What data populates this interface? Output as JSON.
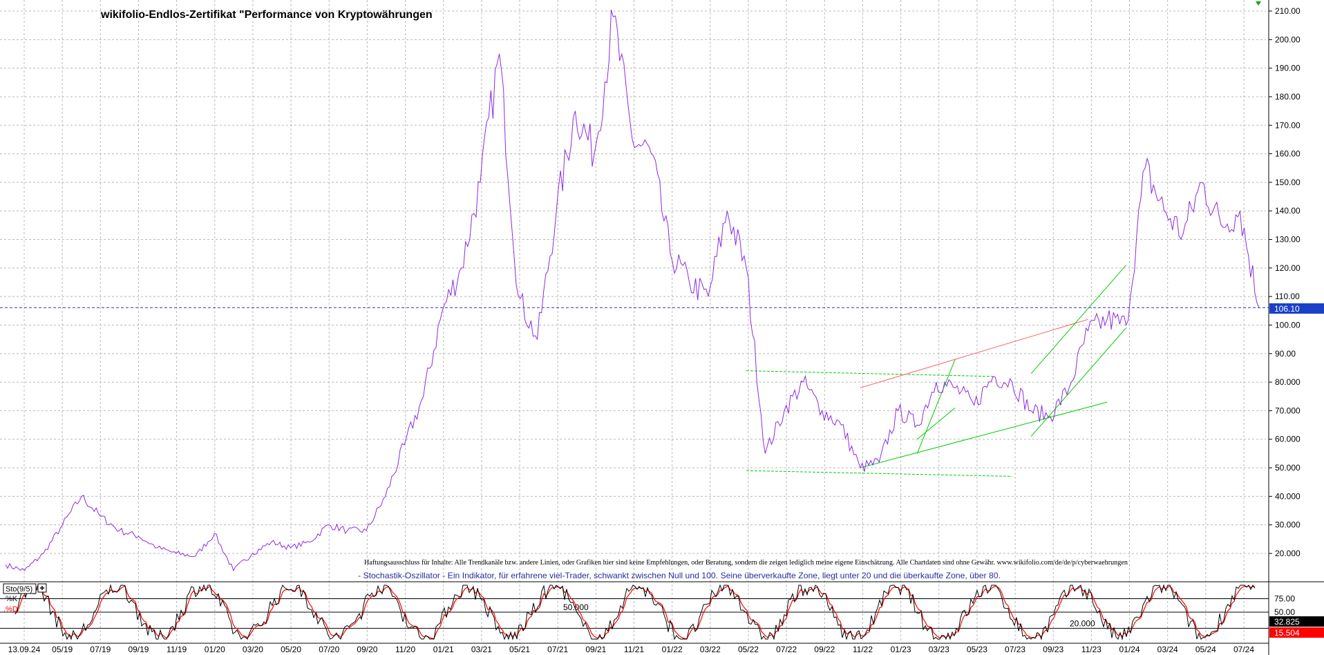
{
  "chart_data": {
    "type": "line",
    "title": "wikifolio-Endlos-Zertifikat \"Performance von Kryptowährungen",
    "ylim": [
      10,
      213
    ],
    "yticks": [
      20,
      30,
      40,
      50,
      60,
      70,
      80,
      90,
      100,
      110,
      120,
      130,
      140,
      150,
      160,
      170,
      180,
      190,
      200,
      210
    ],
    "ytick_labels": [
      "20.000",
      "30.000",
      "40.000",
      "50.000",
      "60.000",
      "70.000",
      "80.000",
      "90.00",
      "100.00",
      "110.00",
      "120.00",
      "130.00",
      "140.00",
      "150.00",
      "160.00",
      "170.00",
      "180.00",
      "190.00",
      "200.00",
      "210.00"
    ],
    "xtick_labels": [
      "13.09.24",
      "05/19",
      "07/19",
      "09/19",
      "11/19",
      "01/20",
      "03/20",
      "05/20",
      "07/20",
      "09/20",
      "11/20",
      "01/21",
      "03/21",
      "05/21",
      "07/21",
      "09/21",
      "11/21",
      "01/22",
      "03/22",
      "05/22",
      "07/22",
      "09/22",
      "11/22",
      "01/23",
      "03/23",
      "05/23",
      "07/23",
      "09/23",
      "11/23",
      "01/24",
      "03/24",
      "05/24",
      "07/24"
    ],
    "grid": true,
    "series": [
      {
        "name": "",
        "color": "#8a2be2",
        "x": [
          "2019-03",
          "2019-04",
          "2019-05",
          "2019-06",
          "2019-07",
          "2019-08",
          "2019-09",
          "2019-10",
          "2019-11",
          "2019-12",
          "2020-01",
          "2020-02",
          "2020-03",
          "2020-04",
          "2020-05",
          "2020-06",
          "2020-07",
          "2020-08",
          "2020-09",
          "2020-10",
          "2020-11",
          "2020-12",
          "2021-01",
          "2021-02",
          "2021-03",
          "2021-04",
          "2021-05",
          "2021-06",
          "2021-07",
          "2021-08",
          "2021-09",
          "2021-10",
          "2021-11",
          "2021-12",
          "2022-01",
          "2022-02",
          "2022-03",
          "2022-04",
          "2022-05",
          "2022-06",
          "2022-07",
          "2022-08",
          "2022-09",
          "2022-10",
          "2022-11",
          "2022-12",
          "2023-01",
          "2023-02",
          "2023-03",
          "2023-04",
          "2023-05",
          "2023-06",
          "2023-07",
          "2023-08",
          "2023-09",
          "2023-10",
          "2023-11",
          "2023-12",
          "2024-01",
          "2024-02",
          "2024-03",
          "2024-04",
          "2024-05",
          "2024-06",
          "2024-07",
          "2024-08",
          "2024-09"
        ],
        "y": [
          16,
          14,
          20,
          30,
          40,
          33,
          28,
          26,
          22,
          20,
          19,
          27,
          14,
          20,
          24,
          22,
          24,
          30,
          28,
          28,
          40,
          58,
          75,
          105,
          120,
          150,
          195,
          110,
          95,
          140,
          175,
          160,
          208,
          165,
          160,
          125,
          115,
          110,
          140,
          120,
          55,
          70,
          80,
          70,
          65,
          50,
          52,
          70,
          65,
          80,
          78,
          72,
          82,
          80,
          70,
          68,
          78,
          98,
          102,
          100,
          155,
          140,
          132,
          150,
          135,
          140,
          106
        ]
      }
    ],
    "current_value": "106.10",
    "annotations": {
      "disclaimer": "Haftungsausschluss für Inhalte: Alle Trendkanäle bzw. andere Linien, oder Grafiken hier sind keine Empfehlungen, oder Beratung, sondern die zeigen lediglich meine eigene Einschätzung. Alle Chartdaten sind ohne Gewähr.  www.wikifolio.com/de/de/p/cyberwaehrungen",
      "indicator_note": "- Stochastik-Oszillator - Ein Indikator, für erfahrene viel-Trader, schwankt zwischen Null und 100. Seine überverkaufte Zone, liegt unter 20 und die überkaufte Zone, über 80."
    },
    "trendlines": [
      {
        "color": "#00cc00",
        "style": "dashed",
        "from": [
          "2022-06",
          84
        ],
        "to": [
          "2023-07",
          82
        ]
      },
      {
        "color": "#00cc00",
        "style": "dashed",
        "from": [
          "2022-06",
          49
        ],
        "to": [
          "2023-08",
          47
        ]
      },
      {
        "color": "#ff6666",
        "style": "solid",
        "from": [
          "2022-12",
          78
        ],
        "to": [
          "2023-12",
          102
        ]
      },
      {
        "color": "#00cc00",
        "style": "solid",
        "from": [
          "2022-12",
          50
        ],
        "to": [
          "2024-01",
          73
        ]
      },
      {
        "color": "#00cc00",
        "style": "solid",
        "from": [
          "2023-03",
          55
        ],
        "to": [
          "2023-05",
          88
        ]
      },
      {
        "color": "#00cc00",
        "style": "solid",
        "from": [
          "2023-03",
          60
        ],
        "to": [
          "2023-05",
          71
        ]
      },
      {
        "color": "#00cc00",
        "style": "solid",
        "from": [
          "2023-09",
          83
        ],
        "to": [
          "2024-02",
          121
        ]
      },
      {
        "color": "#00cc00",
        "style": "solid",
        "from": [
          "2023-09",
          61
        ],
        "to": [
          "2024-02",
          99
        ]
      }
    ],
    "indicator": {
      "name": "Sto(9/5)",
      "k_label": "%K",
      "d_label": ".%D",
      "levels": [
        20,
        50,
        75
      ],
      "level_labels": [
        "20.000",
        "50.000",
        "75.00",
        "50.00"
      ],
      "k_value": "32.825",
      "d_value": "15.504",
      "k_color": "#000000",
      "d_color": "#ff0000"
    }
  }
}
